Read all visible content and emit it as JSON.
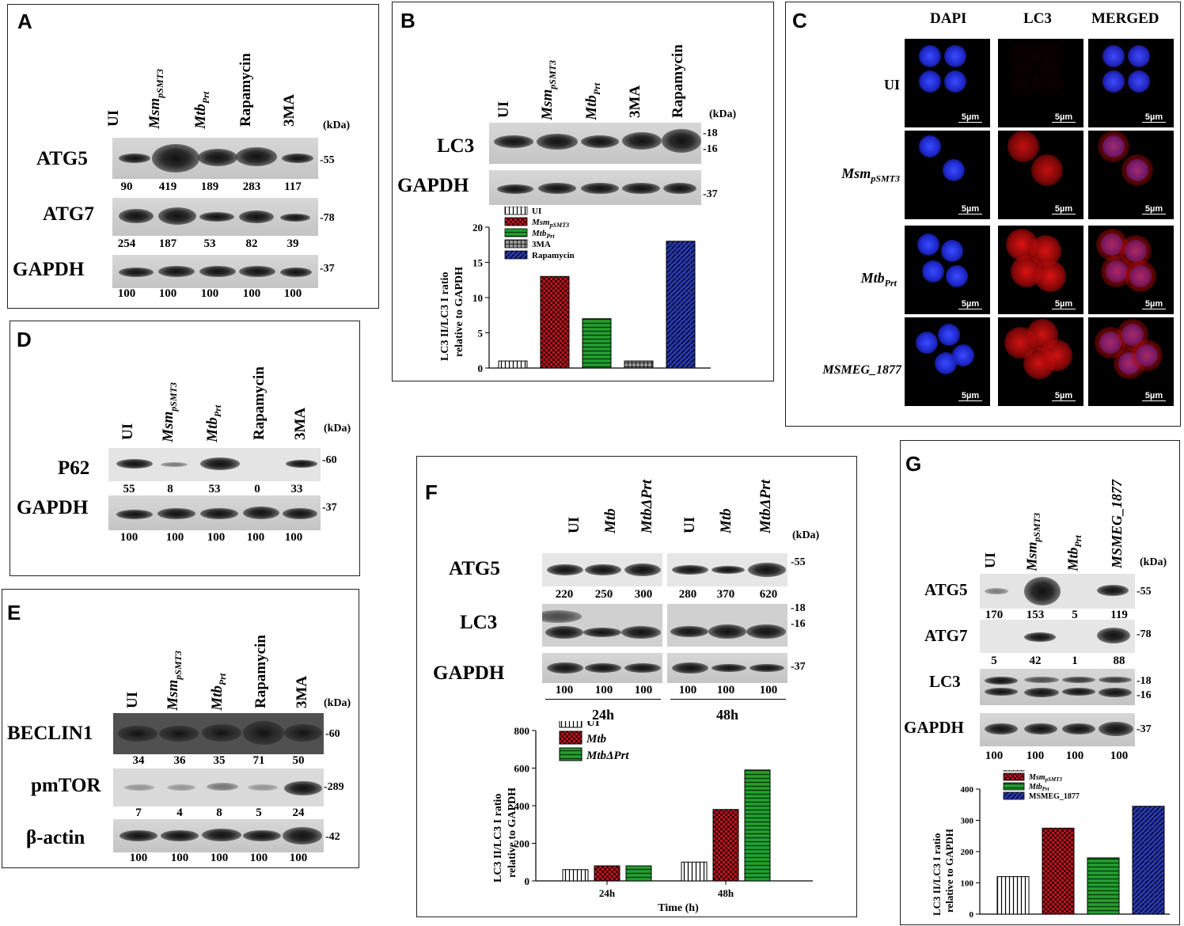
{
  "panels": {
    "A": {
      "label": "A",
      "lanes": [
        "UI",
        "Msm",
        "pSMT3",
        "Mtb",
        "Prt",
        "Rapamycin",
        "3MA"
      ],
      "kda": "(kDa)",
      "rows": [
        {
          "name": "ATG5",
          "marker": "-55",
          "values": [
            "90",
            "419",
            "189",
            "283",
            "117"
          ]
        },
        {
          "name": "ATG7",
          "marker": "-78",
          "values": [
            "254",
            "187",
            "53",
            "82",
            "39"
          ]
        },
        {
          "name": "GAPDH",
          "marker": "-37",
          "values": [
            "100",
            "100",
            "100",
            "100",
            "100"
          ]
        }
      ]
    },
    "B": {
      "label": "B",
      "lanes": [
        "UI",
        "Msm",
        "pSMT3",
        "Mtb",
        "Prt",
        "3MA",
        "Rapamycin"
      ],
      "kda": "(kDa)",
      "rows": [
        {
          "name": "LC3",
          "markers": [
            "-18",
            "-16"
          ]
        },
        {
          "name": "GAPDH",
          "markers": [
            "-37"
          ]
        }
      ],
      "ylabel_1": "LC3 II/LC3 I ratio",
      "ylabel_2": "relative to GAPDH"
    },
    "C": {
      "label": "C",
      "columns": [
        "DAPI",
        "LC3",
        "MERGED"
      ],
      "rows": [
        "UI",
        "Msm",
        "pSMT3",
        "Mtb",
        "Prt",
        "MSMEG_1877"
      ],
      "scale": "5µm"
    },
    "D": {
      "label": "D",
      "lanes": [
        "UI",
        "Msm",
        "pSMT3",
        "Mtb",
        "Prt",
        "Rapamycin",
        "3MA"
      ],
      "kda": "(kDa)",
      "rows": [
        {
          "name": "P62",
          "marker": "-60",
          "values": [
            "55",
            "8",
            "53",
            "0",
            "33"
          ]
        },
        {
          "name": "GAPDH",
          "marker": "-37",
          "values": [
            "100",
            "100",
            "100",
            "100",
            "100"
          ]
        }
      ]
    },
    "E": {
      "label": "E",
      "lanes": [
        "UI",
        "Msm",
        "pSMT3",
        "Mtb",
        "Prt",
        "Rapamycin",
        "3MA"
      ],
      "kda": "(kDa)",
      "rows": [
        {
          "name": "BECLIN1",
          "marker": "-60",
          "values": [
            "34",
            "36",
            "35",
            "71",
            "50"
          ]
        },
        {
          "name": "pmTOR",
          "marker": "-289",
          "values": [
            "7",
            "4",
            "8",
            "5",
            "24"
          ]
        },
        {
          "name": "β-actin",
          "marker": "-42",
          "values": [
            "100",
            "100",
            "100",
            "100",
            "100"
          ]
        }
      ]
    },
    "F": {
      "label": "F",
      "lanes": [
        "UI",
        "Mtb",
        "MtbΔPrt",
        "UI",
        "Mtb",
        "MtbΔPrt"
      ],
      "kda": "(kDa)",
      "rows": [
        {
          "name": "ATG5",
          "markers": [
            "-55"
          ],
          "values": [
            "220",
            "250",
            "300",
            "280",
            "370",
            "620"
          ]
        },
        {
          "name": "LC3",
          "markers": [
            "-18",
            "-16"
          ]
        },
        {
          "name": "GAPDH",
          "markers": [
            "-37"
          ],
          "values": [
            "100",
            "100",
            "100",
            "100",
            "100",
            "100"
          ]
        }
      ],
      "times": [
        "24h",
        "48h"
      ],
      "ylabel_1": "LC3 II/LC3 I ratio",
      "ylabel_2": "relative to GAPDH",
      "xlabel": "Time (h)"
    },
    "G": {
      "label": "G",
      "lanes": [
        "UI",
        "Msm",
        "pSMT3",
        "Mtb",
        "Prt",
        "MSMEG_1877"
      ],
      "kda": "(kDa)",
      "rows": [
        {
          "name": "ATG5",
          "markers": [
            "-55"
          ],
          "values": [
            "170",
            "153",
            "5",
            "119"
          ]
        },
        {
          "name": "ATG7",
          "markers": [
            "-78"
          ],
          "values": [
            "5",
            "42",
            "1",
            "88"
          ]
        },
        {
          "name": "LC3",
          "markers": [
            "-18",
            "-16"
          ]
        },
        {
          "name": "GAPDH",
          "markers": [
            "-37"
          ],
          "values": [
            "100",
            "100",
            "100",
            "100"
          ]
        }
      ],
      "ylabel_1": "LC3 II/LC3 I ratio",
      "ylabel_2": "relative to GAPDH"
    }
  },
  "chart_data": [
    {
      "panel": "B",
      "type": "bar",
      "categories": [
        "UI",
        "MsmpSMT3",
        "MtbPrt",
        "3MA",
        "Rapamycin"
      ],
      "legend": [
        "UI",
        "Msm",
        "pSMT3",
        "Mtb",
        "Prt",
        "3MA",
        "Rapamycin"
      ],
      "values": [
        1,
        13,
        7,
        1,
        18
      ],
      "ylim": [
        0,
        20
      ],
      "yticks": [
        "0",
        "5",
        "10",
        "15",
        "20"
      ],
      "colors": [
        "#ffffff",
        "#b3141c",
        "#1f9a2c",
        "#777777",
        "#1a2a9e"
      ],
      "legend_placement": "top"
    },
    {
      "panel": "F",
      "type": "bar",
      "categories": [
        "24h",
        "48h"
      ],
      "legend": [
        "UI",
        "Mtb",
        "MtbΔPrt"
      ],
      "series": [
        {
          "name": "UI",
          "values": [
            60,
            100
          ]
        },
        {
          "name": "Mtb",
          "values": [
            80,
            380
          ]
        },
        {
          "name": "MtbΔPrt",
          "values": [
            80,
            590
          ]
        }
      ],
      "ylim": [
        0,
        800
      ],
      "yticks": [
        "0",
        "200",
        "400",
        "600",
        "800"
      ],
      "colors": [
        "#ffffff",
        "#b3141c",
        "#1f7a2c"
      ],
      "legend_placement": "top-left"
    },
    {
      "panel": "G",
      "type": "bar",
      "categories": [
        "UI",
        "MsmpSMT3",
        "MtbPrt",
        "MSMEG_1877"
      ],
      "legend": [
        "UI",
        "Msm",
        "pSMT3",
        "Mtb",
        "Prt",
        "MSMEG_1877"
      ],
      "values": [
        120,
        275,
        180,
        345
      ],
      "ylim": [
        0,
        400
      ],
      "yticks": [
        "0",
        "100",
        "200",
        "300",
        "400"
      ],
      "colors": [
        "#ffffff",
        "#b3141c",
        "#1f9a2c",
        "#1a2a9e"
      ],
      "legend_placement": "top"
    }
  ]
}
